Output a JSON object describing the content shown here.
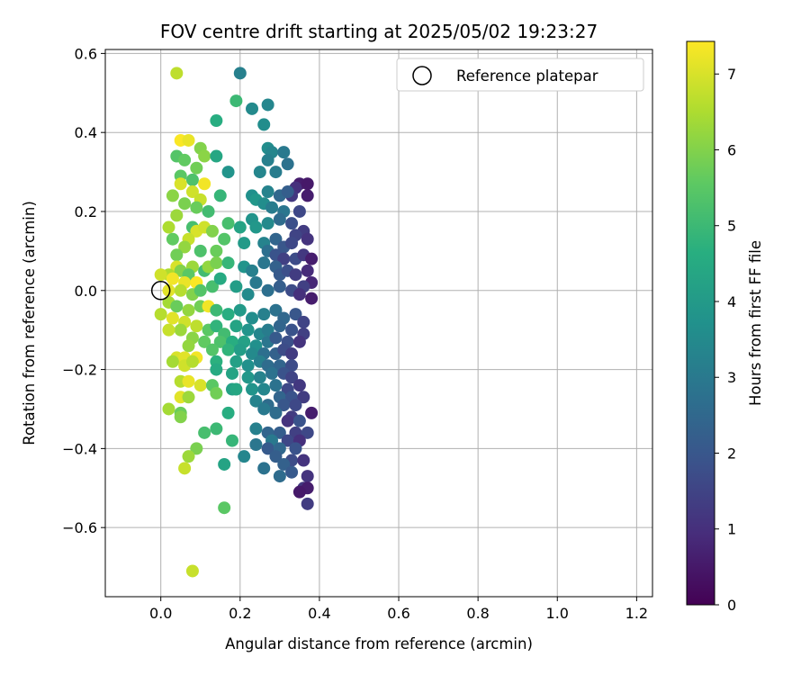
{
  "chart_data": {
    "type": "scatter",
    "title": "FOV centre drift starting at 2025/05/02 19:23:27",
    "xlabel": "Angular distance from reference (arcmin)",
    "ylabel": "Rotation from reference (arcmin)",
    "xlim": [
      -0.14,
      1.24
    ],
    "ylim": [
      -0.775,
      0.61
    ],
    "xticks": [
      "0.0",
      "0.2",
      "0.4",
      "0.6",
      "0.8",
      "1.0",
      "1.2"
    ],
    "yticks": [
      "0.6",
      "0.4",
      "0.2",
      "0.0",
      "−0.2",
      "−0.4",
      "−0.6"
    ],
    "grid": true,
    "legend": {
      "location": "top-right",
      "entries": [
        "Reference platepar"
      ]
    },
    "reference_point": {
      "x": 0.0,
      "y": 0.0
    },
    "colorbar": {
      "label": "Hours from first FF file",
      "colormap": "viridis",
      "range": [
        0,
        7.43
      ],
      "ticks": [
        "0",
        "1",
        "2",
        "3",
        "4",
        "5",
        "6",
        "7"
      ]
    },
    "points": [
      [
        0.2,
        0.55,
        3.2
      ],
      [
        0.04,
        0.55,
        6.7
      ],
      [
        0.19,
        0.48,
        5.0
      ],
      [
        0.27,
        0.47,
        3.4
      ],
      [
        0.23,
        0.46,
        3.5
      ],
      [
        0.26,
        0.42,
        3.6
      ],
      [
        0.14,
        0.43,
        4.6
      ],
      [
        0.05,
        0.38,
        7.4
      ],
      [
        0.07,
        0.38,
        7.2
      ],
      [
        0.1,
        0.36,
        6.0
      ],
      [
        0.11,
        0.34,
        6.1
      ],
      [
        0.14,
        0.34,
        4.4
      ],
      [
        0.27,
        0.36,
        3.6
      ],
      [
        0.28,
        0.35,
        3.4
      ],
      [
        0.31,
        0.35,
        3.0
      ],
      [
        0.27,
        0.33,
        3.2
      ],
      [
        0.32,
        0.32,
        2.8
      ],
      [
        0.29,
        0.3,
        3.1
      ],
      [
        0.17,
        0.3,
        3.8
      ],
      [
        0.25,
        0.3,
        3.4
      ],
      [
        0.04,
        0.34,
        5.4
      ],
      [
        0.06,
        0.33,
        5.6
      ],
      [
        0.09,
        0.31,
        5.8
      ],
      [
        0.05,
        0.29,
        5.5
      ],
      [
        0.08,
        0.28,
        5.3
      ],
      [
        0.11,
        0.27,
        7.3
      ],
      [
        0.05,
        0.27,
        7.0
      ],
      [
        0.08,
        0.25,
        6.9
      ],
      [
        0.03,
        0.24,
        6.1
      ],
      [
        0.06,
        0.22,
        5.9
      ],
      [
        0.1,
        0.23,
        6.8
      ],
      [
        0.12,
        0.2,
        5.1
      ],
      [
        0.15,
        0.24,
        4.9
      ],
      [
        0.09,
        0.21,
        5.7
      ],
      [
        0.23,
        0.24,
        3.7
      ],
      [
        0.27,
        0.25,
        3.3
      ],
      [
        0.3,
        0.24,
        2.5
      ],
      [
        0.35,
        0.27,
        0.6
      ],
      [
        0.34,
        0.26,
        1.0
      ],
      [
        0.33,
        0.24,
        1.2
      ],
      [
        0.32,
        0.25,
        2.2
      ],
      [
        0.37,
        0.24,
        0.6
      ],
      [
        0.37,
        0.27,
        0.5
      ],
      [
        0.24,
        0.23,
        3.9
      ],
      [
        0.26,
        0.22,
        3.6
      ],
      [
        0.28,
        0.21,
        3.1
      ],
      [
        0.31,
        0.2,
        2.9
      ],
      [
        0.35,
        0.2,
        1.6
      ],
      [
        0.17,
        0.17,
        5.2
      ],
      [
        0.2,
        0.16,
        4.3
      ],
      [
        0.23,
        0.18,
        3.8
      ],
      [
        0.27,
        0.17,
        3.5
      ],
      [
        0.24,
        0.16,
        3.9
      ],
      [
        0.3,
        0.18,
        2.6
      ],
      [
        0.33,
        0.17,
        1.8
      ],
      [
        0.36,
        0.15,
        1.3
      ],
      [
        0.34,
        0.14,
        1.5
      ],
      [
        0.04,
        0.19,
        6.3
      ],
      [
        0.02,
        0.16,
        6.5
      ],
      [
        0.08,
        0.16,
        5.2
      ],
      [
        0.09,
        0.15,
        7.0
      ],
      [
        0.11,
        0.16,
        6.9
      ],
      [
        0.07,
        0.13,
        6.8
      ],
      [
        0.03,
        0.13,
        5.6
      ],
      [
        0.13,
        0.15,
        6.0
      ],
      [
        0.16,
        0.13,
        5.4
      ],
      [
        0.06,
        0.11,
        6.2
      ],
      [
        0.04,
        0.09,
        5.8
      ],
      [
        0.1,
        0.1,
        5.3
      ],
      [
        0.14,
        0.1,
        5.7
      ],
      [
        0.21,
        0.12,
        4.0
      ],
      [
        0.26,
        0.12,
        3.3
      ],
      [
        0.29,
        0.13,
        2.4
      ],
      [
        0.31,
        0.11,
        2.0
      ],
      [
        0.33,
        0.12,
        1.6
      ],
      [
        0.37,
        0.13,
        1.1
      ],
      [
        0.27,
        0.1,
        2.7
      ],
      [
        0.29,
        0.09,
        1.9
      ],
      [
        0.31,
        0.08,
        1.4
      ],
      [
        0.34,
        0.08,
        1.7
      ],
      [
        0.36,
        0.09,
        1.2
      ],
      [
        0.38,
        0.08,
        0.6
      ],
      [
        0.08,
        0.06,
        6.3
      ],
      [
        0.04,
        0.06,
        7.0
      ],
      [
        0.02,
        0.04,
        6.5
      ],
      [
        0.0,
        0.04,
        6.9
      ],
      [
        0.05,
        0.05,
        6.0
      ],
      [
        0.07,
        0.04,
        5.5
      ],
      [
        0.11,
        0.05,
        5.1
      ],
      [
        0.12,
        0.06,
        6.2
      ],
      [
        0.14,
        0.07,
        5.9
      ],
      [
        0.17,
        0.07,
        4.9
      ],
      [
        0.21,
        0.06,
        3.8
      ],
      [
        0.23,
        0.05,
        3.2
      ],
      [
        0.26,
        0.07,
        2.9
      ],
      [
        0.29,
        0.06,
        2.3
      ],
      [
        0.3,
        0.04,
        2.1
      ],
      [
        0.32,
        0.05,
        1.8
      ],
      [
        0.34,
        0.04,
        1.3
      ],
      [
        0.37,
        0.05,
        0.9
      ],
      [
        0.38,
        0.02,
        0.8
      ],
      [
        0.36,
        0.01,
        1.4
      ],
      [
        0.03,
        0.03,
        7.3
      ],
      [
        0.06,
        0.02,
        7.2
      ],
      [
        0.09,
        0.02,
        7.4
      ],
      [
        0.02,
        0.0,
        7.1
      ],
      [
        0.05,
        0.0,
        6.6
      ],
      [
        0.08,
        -0.01,
        6.0
      ],
      [
        0.1,
        0.0,
        5.4
      ],
      [
        0.13,
        0.01,
        5.2
      ],
      [
        0.15,
        0.03,
        4.5
      ],
      [
        0.19,
        0.01,
        4.1
      ],
      [
        0.22,
        -0.01,
        3.5
      ],
      [
        0.24,
        0.02,
        3.0
      ],
      [
        0.27,
        0.0,
        2.7
      ],
      [
        0.3,
        0.01,
        2.2
      ],
      [
        0.33,
        0.0,
        1.7
      ],
      [
        0.35,
        -0.01,
        1.0
      ],
      [
        0.38,
        -0.02,
        0.6
      ],
      [
        0.02,
        -0.03,
        6.4
      ],
      [
        0.04,
        -0.04,
        5.7
      ],
      [
        0.07,
        -0.05,
        6.2
      ],
      [
        0.1,
        -0.04,
        5.8
      ],
      [
        0.12,
        -0.04,
        7.3
      ],
      [
        0.14,
        -0.05,
        5.0
      ],
      [
        0.17,
        -0.06,
        4.6
      ],
      [
        0.2,
        -0.05,
        4.0
      ],
      [
        0.23,
        -0.07,
        3.6
      ],
      [
        0.26,
        -0.06,
        3.2
      ],
      [
        0.29,
        -0.05,
        2.8
      ],
      [
        0.31,
        -0.07,
        2.5
      ],
      [
        0.34,
        -0.06,
        2.0
      ],
      [
        0.36,
        -0.08,
        1.5
      ],
      [
        0.0,
        -0.06,
        6.6
      ],
      [
        0.03,
        -0.07,
        7.1
      ],
      [
        0.06,
        -0.08,
        6.9
      ],
      [
        0.09,
        -0.09,
        6.7
      ],
      [
        0.05,
        -0.1,
        6.3
      ],
      [
        0.12,
        -0.1,
        5.5
      ],
      [
        0.14,
        -0.09,
        4.8
      ],
      [
        0.16,
        -0.11,
        5.1
      ],
      [
        0.19,
        -0.09,
        4.3
      ],
      [
        0.22,
        -0.1,
        3.8
      ],
      [
        0.25,
        -0.11,
        3.4
      ],
      [
        0.27,
        -0.1,
        3.1
      ],
      [
        0.3,
        -0.09,
        2.4
      ],
      [
        0.33,
        -0.1,
        1.9
      ],
      [
        0.36,
        -0.11,
        1.4
      ],
      [
        0.02,
        -0.1,
        6.8
      ],
      [
        0.08,
        -0.12,
        6.1
      ],
      [
        0.11,
        -0.13,
        5.6
      ],
      [
        0.15,
        -0.13,
        5.3
      ],
      [
        0.18,
        -0.13,
        4.6
      ],
      [
        0.21,
        -0.13,
        4.2
      ],
      [
        0.24,
        -0.14,
        3.7
      ],
      [
        0.27,
        -0.13,
        2.9
      ],
      [
        0.29,
        -0.12,
        2.1
      ],
      [
        0.32,
        -0.13,
        1.8
      ],
      [
        0.35,
        -0.13,
        1.1
      ],
      [
        0.07,
        -0.14,
        6.2
      ],
      [
        0.13,
        -0.15,
        5.4
      ],
      [
        0.17,
        -0.15,
        4.8
      ],
      [
        0.2,
        -0.15,
        4.1
      ],
      [
        0.23,
        -0.16,
        3.5
      ],
      [
        0.26,
        -0.16,
        2.7
      ],
      [
        0.29,
        -0.16,
        2.3
      ],
      [
        0.31,
        -0.15,
        1.7
      ],
      [
        0.33,
        -0.16,
        1.3
      ],
      [
        0.04,
        -0.17,
        7.0
      ],
      [
        0.06,
        -0.17,
        7.1
      ],
      [
        0.09,
        -0.17,
        7.3
      ],
      [
        0.03,
        -0.18,
        6.4
      ],
      [
        0.06,
        -0.19,
        6.9
      ],
      [
        0.08,
        -0.18,
        6.6
      ],
      [
        0.14,
        -0.18,
        4.7
      ],
      [
        0.19,
        -0.18,
        4.2
      ],
      [
        0.22,
        -0.19,
        3.7
      ],
      [
        0.25,
        -0.18,
        3.2
      ],
      [
        0.27,
        -0.19,
        2.6
      ],
      [
        0.3,
        -0.19,
        2.4
      ],
      [
        0.33,
        -0.19,
        1.7
      ],
      [
        0.28,
        -0.21,
        2.8
      ],
      [
        0.31,
        -0.21,
        1.9
      ],
      [
        0.14,
        -0.2,
        4.5
      ],
      [
        0.18,
        -0.21,
        4.3
      ],
      [
        0.22,
        -0.22,
        3.9
      ],
      [
        0.25,
        -0.22,
        3.3
      ],
      [
        0.33,
        -0.22,
        1.5
      ],
      [
        0.05,
        -0.23,
        6.6
      ],
      [
        0.07,
        -0.23,
        7.2
      ],
      [
        0.1,
        -0.24,
        7.0
      ],
      [
        0.13,
        -0.24,
        5.5
      ],
      [
        0.18,
        -0.25,
        4.2
      ],
      [
        0.19,
        -0.25,
        4.4
      ],
      [
        0.23,
        -0.25,
        3.8
      ],
      [
        0.26,
        -0.25,
        3.4
      ],
      [
        0.29,
        -0.24,
        2.8
      ],
      [
        0.32,
        -0.25,
        1.6
      ],
      [
        0.35,
        -0.24,
        1.2
      ],
      [
        0.05,
        -0.27,
        7.1
      ],
      [
        0.07,
        -0.27,
        6.3
      ],
      [
        0.14,
        -0.26,
        5.8
      ],
      [
        0.24,
        -0.28,
        3.3
      ],
      [
        0.3,
        -0.27,
        2.4
      ],
      [
        0.33,
        -0.27,
        1.9
      ],
      [
        0.36,
        -0.27,
        1.3
      ],
      [
        0.27,
        -0.29,
        2.6
      ],
      [
        0.31,
        -0.29,
        2.0
      ],
      [
        0.34,
        -0.29,
        1.6
      ],
      [
        0.02,
        -0.3,
        6.4
      ],
      [
        0.05,
        -0.31,
        5.7
      ],
      [
        0.05,
        -0.32,
        6.0
      ],
      [
        0.17,
        -0.31,
        4.6
      ],
      [
        0.26,
        -0.3,
        3.0
      ],
      [
        0.29,
        -0.31,
        2.6
      ],
      [
        0.33,
        -0.32,
        1.3
      ],
      [
        0.38,
        -0.31,
        0.6
      ],
      [
        0.32,
        -0.33,
        1.1
      ],
      [
        0.35,
        -0.33,
        1.9
      ],
      [
        0.14,
        -0.35,
        5.0
      ],
      [
        0.24,
        -0.35,
        3.2
      ],
      [
        0.27,
        -0.36,
        2.4
      ],
      [
        0.3,
        -0.36,
        2.2
      ],
      [
        0.34,
        -0.36,
        1.4
      ],
      [
        0.37,
        -0.36,
        1.6
      ],
      [
        0.11,
        -0.36,
        5.2
      ],
      [
        0.28,
        -0.38,
        3.0
      ],
      [
        0.32,
        -0.38,
        1.6
      ],
      [
        0.35,
        -0.38,
        1.0
      ],
      [
        0.18,
        -0.38,
        4.9
      ],
      [
        0.09,
        -0.4,
        5.9
      ],
      [
        0.24,
        -0.39,
        2.9
      ],
      [
        0.27,
        -0.4,
        2.1
      ],
      [
        0.3,
        -0.4,
        2.5
      ],
      [
        0.34,
        -0.4,
        1.9
      ],
      [
        0.21,
        -0.42,
        3.4
      ],
      [
        0.07,
        -0.42,
        6.3
      ],
      [
        0.29,
        -0.42,
        2.2
      ],
      [
        0.33,
        -0.43,
        1.7
      ],
      [
        0.36,
        -0.43,
        1.1
      ],
      [
        0.16,
        -0.44,
        4.3
      ],
      [
        0.06,
        -0.45,
        6.8
      ],
      [
        0.26,
        -0.45,
        2.8
      ],
      [
        0.31,
        -0.44,
        2.3
      ],
      [
        0.33,
        -0.46,
        2.1
      ],
      [
        0.37,
        -0.47,
        1.1
      ],
      [
        0.3,
        -0.47,
        2.6
      ],
      [
        0.36,
        -0.5,
        1.2
      ],
      [
        0.37,
        -0.5,
        0.6
      ],
      [
        0.35,
        -0.51,
        0.5
      ],
      [
        0.37,
        -0.54,
        1.3
      ],
      [
        0.16,
        -0.55,
        5.5
      ],
      [
        0.08,
        -0.71,
        6.8
      ]
    ]
  }
}
